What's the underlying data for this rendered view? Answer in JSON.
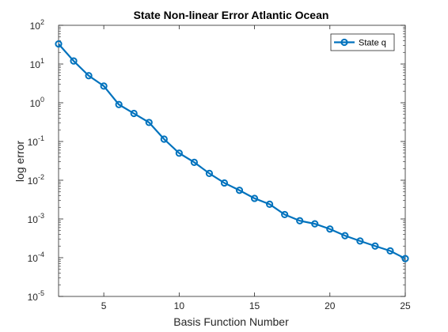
{
  "chart_data": {
    "type": "line",
    "title": "State Non-linear Error Atlantic Ocean",
    "xlabel": "Basis Function Number",
    "ylabel": "log error",
    "xlim": [
      2,
      25
    ],
    "ylim": [
      1e-05,
      100
    ],
    "yscale": "log",
    "x_ticks": [
      5,
      10,
      15,
      20,
      25
    ],
    "y_ticks": [
      {
        "value": 1e-05,
        "base": "10",
        "exp": "-5"
      },
      {
        "value": 0.0001,
        "base": "10",
        "exp": "-4"
      },
      {
        "value": 0.001,
        "base": "10",
        "exp": "-3"
      },
      {
        "value": 0.01,
        "base": "10",
        "exp": "-2"
      },
      {
        "value": 0.1,
        "base": "10",
        "exp": "-1"
      },
      {
        "value": 1,
        "base": "10",
        "exp": "0"
      },
      {
        "value": 10,
        "base": "10",
        "exp": "1"
      },
      {
        "value": 100,
        "base": "10",
        "exp": "2"
      }
    ],
    "grid": false,
    "legend_position": "top-right",
    "series": [
      {
        "name": "State q",
        "color": "#0072bd",
        "marker": "circle",
        "x": [
          2,
          3,
          4,
          5,
          6,
          7,
          8,
          9,
          10,
          11,
          12,
          13,
          14,
          15,
          16,
          17,
          18,
          19,
          20,
          21,
          22,
          23,
          24,
          25
        ],
        "y": [
          33,
          12,
          5,
          2.7,
          0.9,
          0.53,
          0.31,
          0.115,
          0.05,
          0.029,
          0.015,
          0.0085,
          0.0055,
          0.0034,
          0.0024,
          0.0013,
          0.0009,
          0.00075,
          0.00055,
          0.00037,
          0.00027,
          0.0002,
          0.00015,
          9.5e-05
        ]
      }
    ]
  }
}
